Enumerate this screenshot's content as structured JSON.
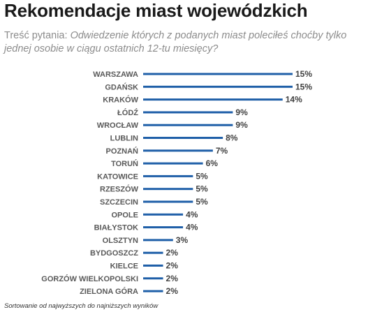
{
  "chart_data": {
    "type": "bar",
    "orientation": "horizontal",
    "title": "Rekomendacje miast wojewódzkich",
    "subtitle_prefix": "Treść pytania: ",
    "subtitle_question": "Odwiedzenie których z podanych miast poleciłeś choćby tylko jednej osobie w ciągu ostatnich 12-tu miesięcy?",
    "categories": [
      "WARSZAWA",
      "GDAŃSK",
      "KRAKÓW",
      "ŁÓDŹ",
      "WROCŁAW",
      "LUBLIN",
      "POZNAŃ",
      "TORUŃ",
      "KATOWICE",
      "RZESZÓW",
      "SZCZECIN",
      "OPOLE",
      "BIAŁYSTOK",
      "OLSZTYN",
      "BYDGOSZCZ",
      "KIELCE",
      "GORZÓW WIELKOPOLSKI",
      "ZIELONA GÓRA"
    ],
    "values": [
      15,
      15,
      14,
      9,
      9,
      8,
      7,
      6,
      5,
      5,
      5,
      4,
      4,
      3,
      2,
      2,
      2,
      2
    ],
    "value_labels": [
      "15%",
      "15%",
      "14%",
      "9%",
      "9%",
      "8%",
      "7%",
      "6%",
      "5%",
      "5%",
      "5%",
      "4%",
      "4%",
      "3%",
      "2%",
      "2%",
      "2%",
      "2%"
    ],
    "unit": "%",
    "bar_color": "#1f5fa8",
    "grid": false,
    "legend": "none",
    "footnote": "Sortowanie od najwyższych do najniższych wyników"
  }
}
